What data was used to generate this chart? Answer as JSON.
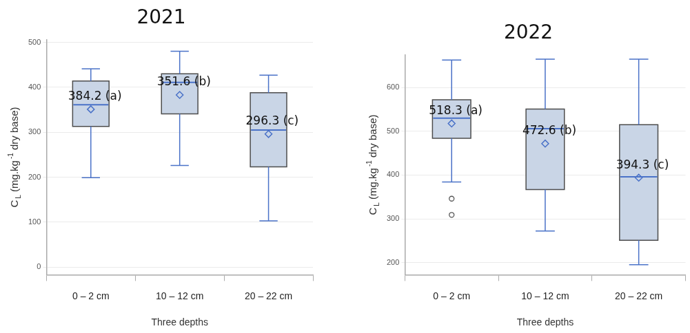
{
  "chart_data": [
    {
      "type": "box",
      "title": "2021",
      "xlabel": "Three depths",
      "ylabel": "C$_{L}$ (mg.kg$^{-1}$ dry base)",
      "categories": [
        "0 – 2 cm",
        "10 – 12 cm",
        "20 – 22 cm"
      ],
      "color": "#c9d5e6",
      "boxes": [
        {
          "low": 199,
          "q1": 313,
          "median": 361,
          "q3": 414,
          "high": 441,
          "mean": 351
        },
        {
          "low": 226,
          "q1": 341,
          "median": 411,
          "q3": 430,
          "high": 480,
          "mean": 383
        },
        {
          "low": 103,
          "q1": 223,
          "median": 305,
          "q3": 388,
          "high": 427,
          "mean": 296
        }
      ],
      "ylim": [
        -17,
        506
      ],
      "yticks": [
        0,
        100,
        200,
        300,
        400,
        500
      ],
      "grid": "y",
      "annotations": [
        "384.2 (a)",
        "351.6 (b)",
        "296.3 (c)"
      ]
    },
    {
      "type": "box",
      "title": "2022",
      "xlabel": "Three depths",
      "ylabel": "C$_{L}$ (mg.kg$^{-1}$ dry base)",
      "categories": [
        "0 – 2 cm",
        "10 – 12 cm",
        "20 – 22 cm"
      ],
      "color": "#c9d5e6",
      "boxes": [
        {
          "low": 384,
          "q1": 484,
          "median": 530,
          "q3": 572,
          "high": 663,
          "mean": 518,
          "outliers": [
            346,
            309
          ]
        },
        {
          "low": 272,
          "q1": 367,
          "median": 506,
          "q3": 551,
          "high": 665,
          "mean": 472
        },
        {
          "low": 195,
          "q1": 251,
          "median": 396,
          "q3": 515,
          "high": 665,
          "mean": 394
        }
      ],
      "ylim": [
        172,
        675
      ],
      "yticks": [
        200,
        300,
        400,
        500,
        600
      ],
      "grid": "y",
      "annotations": [
        "518.3 (a)",
        "472.6 (b)",
        "394.3 (c)"
      ]
    }
  ]
}
